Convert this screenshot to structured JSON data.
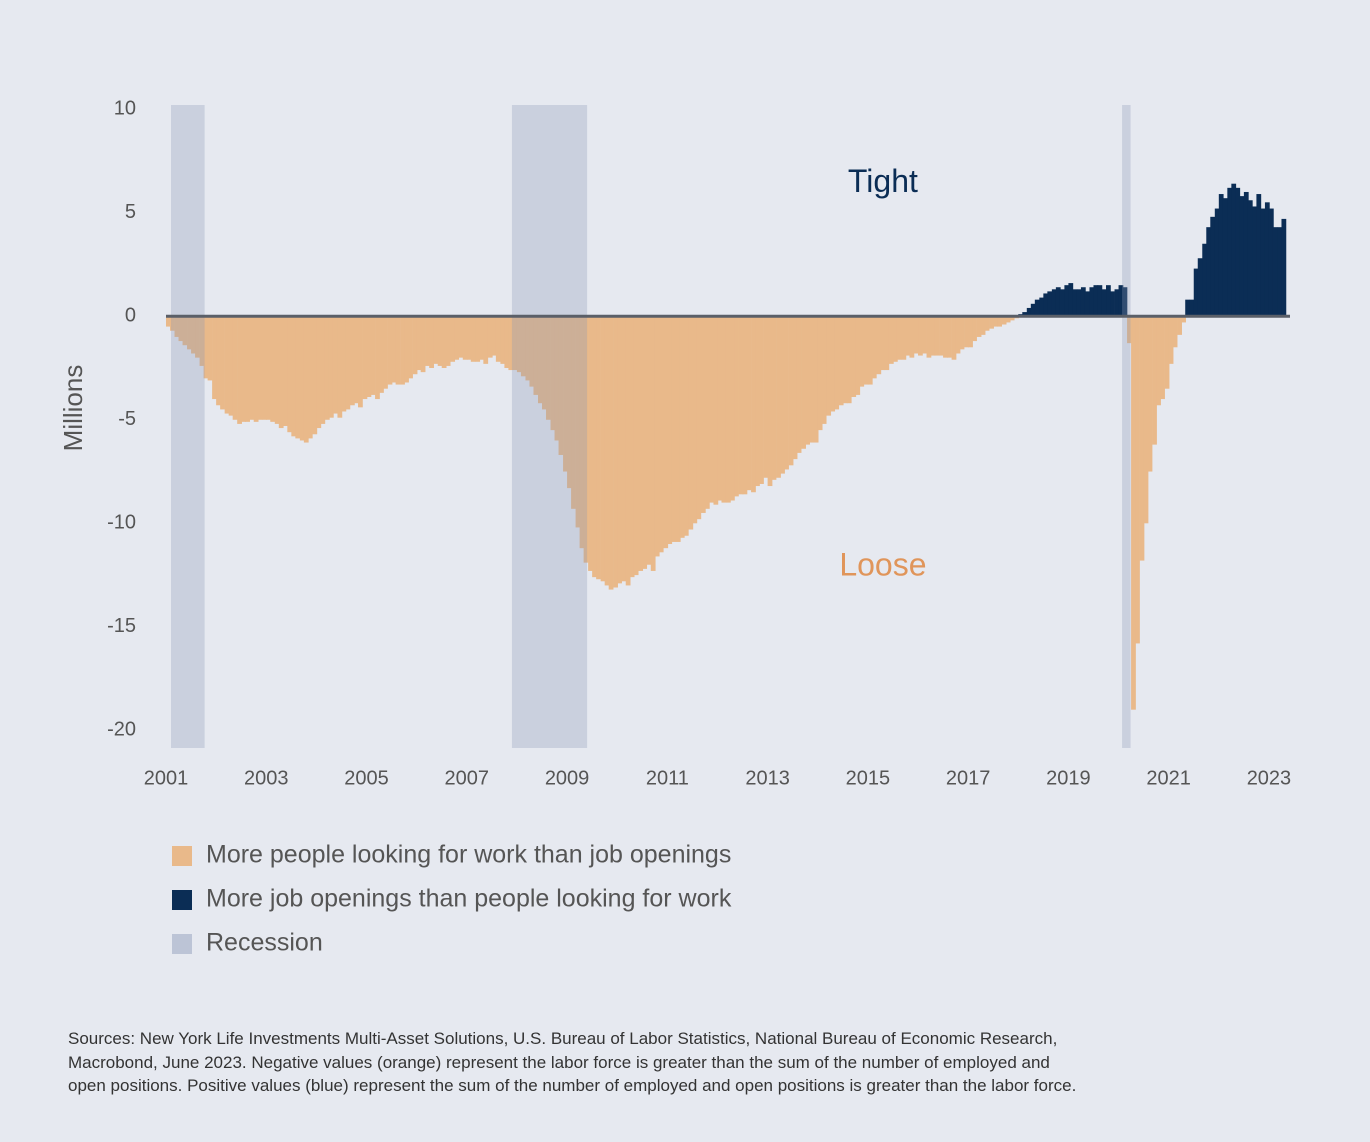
{
  "chart_data": {
    "type": "bar",
    "y_label": "Millions",
    "annotations": [
      {
        "text": "Tight",
        "color": "#0b2d55",
        "x": 2015.3,
        "y": 6.4
      },
      {
        "text": "Loose",
        "color": "#e0955a",
        "x": 2015.3,
        "y": -12.1
      }
    ],
    "xlim": [
      2001,
      2023.42
    ],
    "xticks": [
      2001,
      2003,
      2005,
      2007,
      2009,
      2011,
      2013,
      2015,
      2017,
      2019,
      2021,
      2023
    ],
    "ylim": [
      -20.85,
      10.2
    ],
    "yticks": [
      10,
      5,
      0,
      -5,
      -10,
      -15,
      -20
    ],
    "zero_line": true,
    "recession": {
      "name": "Recession",
      "color": "#8a97b5",
      "ranges": [
        [
          2001.1,
          2001.77
        ],
        [
          2007.9,
          2009.4
        ],
        [
          2020.07,
          2020.24
        ]
      ]
    },
    "series": [
      {
        "name": "More people looking for work than job openings",
        "color": "#e9b98a",
        "x": [
          2001,
          2001.08,
          2001.17,
          2001.25,
          2001.33,
          2001.42,
          2001.5,
          2001.58,
          2001.67,
          2001.75,
          2001.83,
          2001.92,
          2002,
          2002.08,
          2002.17,
          2002.25,
          2002.33,
          2002.42,
          2002.5,
          2002.58,
          2002.67,
          2002.75,
          2002.83,
          2002.92,
          2003,
          2003.08,
          2003.17,
          2003.25,
          2003.33,
          2003.42,
          2003.5,
          2003.58,
          2003.67,
          2003.75,
          2003.83,
          2003.92,
          2004,
          2004.08,
          2004.17,
          2004.25,
          2004.33,
          2004.42,
          2004.5,
          2004.58,
          2004.67,
          2004.75,
          2004.83,
          2004.92,
          2005,
          2005.08,
          2005.17,
          2005.25,
          2005.33,
          2005.42,
          2005.5,
          2005.58,
          2005.67,
          2005.75,
          2005.83,
          2005.92,
          2006,
          2006.08,
          2006.17,
          2006.25,
          2006.33,
          2006.42,
          2006.5,
          2006.58,
          2006.67,
          2006.75,
          2006.83,
          2006.92,
          2007,
          2007.08,
          2007.17,
          2007.25,
          2007.33,
          2007.42,
          2007.5,
          2007.58,
          2007.67,
          2007.75,
          2007.83,
          2007.92,
          2008,
          2008.08,
          2008.17,
          2008.25,
          2008.33,
          2008.42,
          2008.5,
          2008.58,
          2008.67,
          2008.75,
          2008.83,
          2008.92,
          2009,
          2009.08,
          2009.17,
          2009.25,
          2009.33,
          2009.42,
          2009.5,
          2009.58,
          2009.67,
          2009.75,
          2009.83,
          2009.92,
          2010,
          2010.08,
          2010.17,
          2010.25,
          2010.33,
          2010.42,
          2010.5,
          2010.58,
          2010.67,
          2010.75,
          2010.83,
          2010.92,
          2011,
          2011.08,
          2011.17,
          2011.25,
          2011.33,
          2011.42,
          2011.5,
          2011.58,
          2011.67,
          2011.75,
          2011.83,
          2011.92,
          2012,
          2012.08,
          2012.17,
          2012.25,
          2012.33,
          2012.42,
          2012.5,
          2012.58,
          2012.67,
          2012.75,
          2012.83,
          2012.92,
          2013,
          2013.08,
          2013.17,
          2013.25,
          2013.33,
          2013.42,
          2013.5,
          2013.58,
          2013.67,
          2013.75,
          2013.83,
          2013.92,
          2014,
          2014.08,
          2014.17,
          2014.25,
          2014.33,
          2014.42,
          2014.5,
          2014.58,
          2014.67,
          2014.75,
          2014.83,
          2014.92,
          2015,
          2015.08,
          2015.17,
          2015.25,
          2015.33,
          2015.42,
          2015.5,
          2015.58,
          2015.67,
          2015.75,
          2015.83,
          2015.92,
          2016,
          2016.08,
          2016.17,
          2016.25,
          2016.33,
          2016.42,
          2016.5,
          2016.58,
          2016.67,
          2016.75,
          2016.83,
          2016.92,
          2017,
          2017.08,
          2017.17,
          2017.25,
          2017.33,
          2017.42,
          2017.5,
          2017.58,
          2017.67,
          2017.75,
          2017.83,
          2017.92,
          2020.17,
          2020.25,
          2020.33,
          2020.42,
          2020.5,
          2020.58,
          2020.67,
          2020.75,
          2020.83,
          2020.92,
          2021,
          2021.08,
          2021.17,
          2021.25
        ],
        "values": [
          -0.5,
          -0.7,
          -1.0,
          -1.2,
          -1.4,
          -1.6,
          -1.8,
          -2.0,
          -2.4,
          -3.0,
          -3.1,
          -4.0,
          -4.3,
          -4.5,
          -4.7,
          -4.8,
          -5.0,
          -5.2,
          -5.1,
          -5.1,
          -5.0,
          -5.1,
          -5.0,
          -5.0,
          -5.0,
          -5.1,
          -5.2,
          -5.4,
          -5.3,
          -5.6,
          -5.8,
          -5.9,
          -6.0,
          -6.1,
          -5.9,
          -5.7,
          -5.4,
          -5.2,
          -5.0,
          -4.9,
          -4.7,
          -4.9,
          -4.6,
          -4.5,
          -4.3,
          -4.2,
          -4.4,
          -4.0,
          -3.9,
          -3.8,
          -4.0,
          -3.7,
          -3.5,
          -3.3,
          -3.2,
          -3.3,
          -3.3,
          -3.2,
          -3.0,
          -2.8,
          -2.6,
          -2.7,
          -2.4,
          -2.5,
          -2.3,
          -2.4,
          -2.5,
          -2.4,
          -2.2,
          -2.1,
          -2.0,
          -2.1,
          -2.1,
          -2.2,
          -2.2,
          -2.1,
          -2.3,
          -2.0,
          -1.9,
          -2.2,
          -2.3,
          -2.5,
          -2.6,
          -2.6,
          -2.7,
          -2.9,
          -3.1,
          -3.4,
          -3.8,
          -4.2,
          -4.5,
          -5.0,
          -5.5,
          -6.0,
          -6.7,
          -7.5,
          -8.3,
          -9.3,
          -10.2,
          -11.2,
          -11.9,
          -12.3,
          -12.6,
          -12.7,
          -12.8,
          -13.0,
          -13.2,
          -13.1,
          -12.9,
          -12.8,
          -13.0,
          -12.6,
          -12.5,
          -12.3,
          -12.2,
          -12.0,
          -12.3,
          -11.6,
          -11.4,
          -11.2,
          -11.0,
          -10.9,
          -10.9,
          -10.7,
          -10.6,
          -10.3,
          -10.0,
          -9.8,
          -9.5,
          -9.3,
          -9.0,
          -9.1,
          -8.9,
          -9.0,
          -9.0,
          -8.9,
          -8.7,
          -8.6,
          -8.6,
          -8.4,
          -8.5,
          -8.2,
          -8.1,
          -7.8,
          -8.2,
          -7.9,
          -7.8,
          -7.6,
          -7.4,
          -7.2,
          -6.9,
          -6.6,
          -6.4,
          -6.2,
          -6.1,
          -6.1,
          -5.5,
          -5.2,
          -4.8,
          -4.6,
          -4.5,
          -4.3,
          -4.2,
          -4.2,
          -3.9,
          -3.8,
          -3.4,
          -3.3,
          -3.3,
          -3.0,
          -2.8,
          -2.6,
          -2.6,
          -2.3,
          -2.2,
          -2.1,
          -2.1,
          -1.9,
          -2.0,
          -1.8,
          -1.9,
          -1.8,
          -2.0,
          -1.9,
          -1.9,
          -1.9,
          -2.0,
          -2.0,
          -2.1,
          -1.8,
          -1.6,
          -1.5,
          -1.5,
          -1.2,
          -1.0,
          -0.9,
          -0.7,
          -0.6,
          -0.5,
          -0.5,
          -0.4,
          -0.3,
          -0.2,
          -0.1,
          -1.3,
          -19.0,
          -15.8,
          -11.8,
          -10.0,
          -7.5,
          -6.2,
          -4.3,
          -4.0,
          -3.5,
          -2.3,
          -1.5,
          -0.9,
          -0.3
        ]
      },
      {
        "name": "More job openings than people looking for work",
        "color": "#0b2d55",
        "x": [
          2018,
          2018.08,
          2018.17,
          2018.25,
          2018.33,
          2018.42,
          2018.5,
          2018.58,
          2018.67,
          2018.75,
          2018.83,
          2018.92,
          2019,
          2019.08,
          2019.17,
          2019.25,
          2019.33,
          2019.42,
          2019.5,
          2019.58,
          2019.67,
          2019.75,
          2019.83,
          2019.92,
          2020,
          2020.08,
          2021.33,
          2021.42,
          2021.5,
          2021.58,
          2021.67,
          2021.75,
          2021.83,
          2021.92,
          2022,
          2022.08,
          2022.17,
          2022.25,
          2022.33,
          2022.42,
          2022.5,
          2022.58,
          2022.67,
          2022.75,
          2022.83,
          2022.92,
          2023,
          2023.08,
          2023.17,
          2023.25
        ],
        "values": [
          0.1,
          0.2,
          0.4,
          0.6,
          0.8,
          0.9,
          1.1,
          1.2,
          1.3,
          1.4,
          1.3,
          1.5,
          1.6,
          1.3,
          1.3,
          1.4,
          1.2,
          1.4,
          1.5,
          1.5,
          1.3,
          1.5,
          1.2,
          1.3,
          1.5,
          1.4,
          0.8,
          0.8,
          2.3,
          2.8,
          3.5,
          4.3,
          4.8,
          5.2,
          5.9,
          5.7,
          6.2,
          6.4,
          6.2,
          5.8,
          6.0,
          5.6,
          5.3,
          5.9,
          5.2,
          5.5,
          5.2,
          4.3,
          4.3,
          4.7
        ]
      }
    ],
    "source": [
      "Sources: New York Life Investments Multi-Asset Solutions, U.S. Bureau of Labor Statistics, National Bureau of Economic Research,",
      "Macrobond, June 2023. Negative values (orange) represent the labor force is greater than the sum of the number of employed and",
      "open positions. Positive values (blue) represent the sum of the number of employed and open positions is greater than the labor force."
    ]
  }
}
